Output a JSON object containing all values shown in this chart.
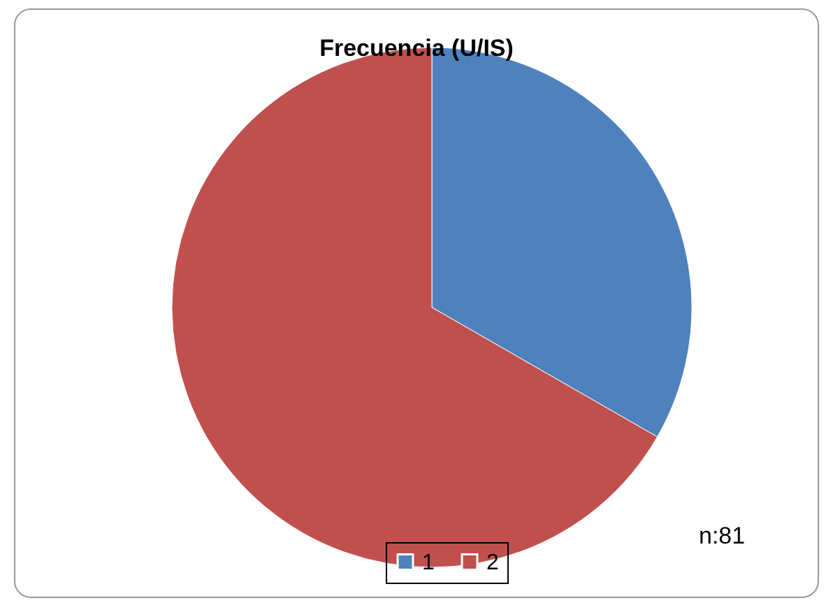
{
  "chart_data": {
    "type": "pie",
    "title": "Frecuencia (U/IS)",
    "categories": [
      "1",
      "2"
    ],
    "values": [
      33.3,
      66.7
    ],
    "colors": [
      "#4f81bd",
      "#c0504d"
    ],
    "legend": "bottom",
    "annotations": [
      "n:81"
    ]
  }
}
